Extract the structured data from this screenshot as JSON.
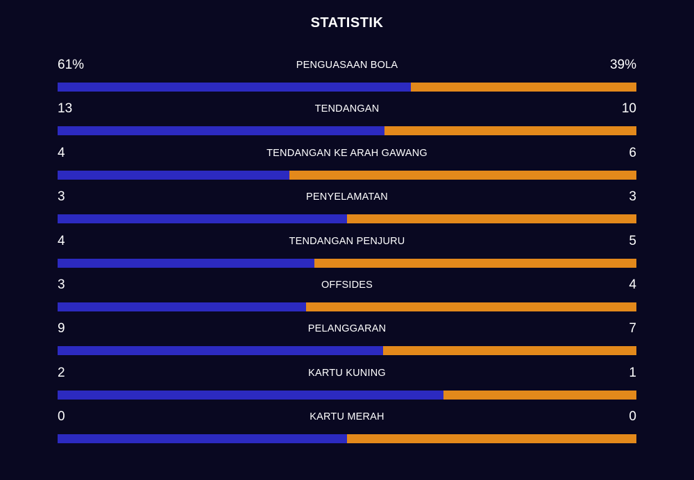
{
  "title": "STATISTIK",
  "colors": {
    "background": "#090821",
    "home": "#2c2ac0",
    "away": "#e3891b"
  },
  "stats": [
    {
      "label": "PENGUASAAN BOLA",
      "home": "61%",
      "away": "39%",
      "home_share": 0.61
    },
    {
      "label": "TENDANGAN",
      "home": "13",
      "away": "10",
      "home_share": 0.565
    },
    {
      "label": "TENDANGAN KE ARAH GAWANG",
      "home": "4",
      "away": "6",
      "home_share": 0.4
    },
    {
      "label": "PENYELAMATAN",
      "home": "3",
      "away": "3",
      "home_share": 0.5
    },
    {
      "label": "TENDANGAN PENJURU",
      "home": "4",
      "away": "5",
      "home_share": 0.444
    },
    {
      "label": "OFFSIDES",
      "home": "3",
      "away": "4",
      "home_share": 0.429
    },
    {
      "label": "PELANGGARAN",
      "home": "9",
      "away": "7",
      "home_share": 0.5625
    },
    {
      "label": "KARTU KUNING",
      "home": "2",
      "away": "1",
      "home_share": 0.667
    },
    {
      "label": "KARTU MERAH",
      "home": "0",
      "away": "0",
      "home_share": 0.5
    }
  ]
}
